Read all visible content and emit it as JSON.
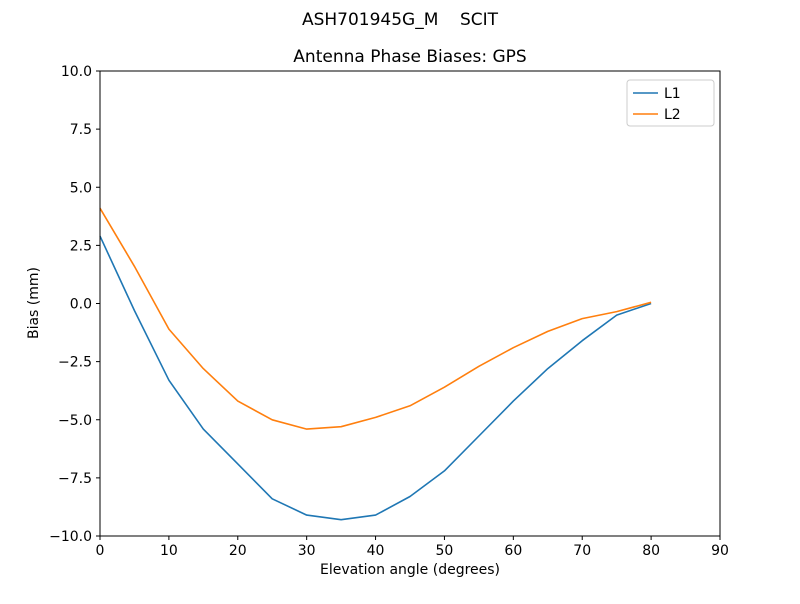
{
  "figure": {
    "suptitle": "ASH701945G_M    SCIT"
  },
  "chart_data": {
    "type": "line",
    "title": "Antenna Phase Biases: GPS",
    "xlabel": "Elevation angle (degrees)",
    "ylabel": "Bias (mm)",
    "xlim": [
      0,
      90
    ],
    "ylim": [
      -10,
      10
    ],
    "grid": false,
    "legend_position": "upper right",
    "xticks": [
      0,
      10,
      20,
      30,
      40,
      50,
      60,
      70,
      80,
      90
    ],
    "xtick_labels": [
      "0",
      "10",
      "20",
      "30",
      "40",
      "50",
      "60",
      "70",
      "80",
      "90"
    ],
    "yticks": [
      -10,
      -7.5,
      -5,
      -2.5,
      0,
      2.5,
      5,
      7.5,
      10
    ],
    "ytick_labels": [
      "−10.0",
      "−7.5",
      "−5.0",
      "−2.5",
      "0.0",
      "2.5",
      "5.0",
      "7.5",
      "10.0"
    ],
    "x": [
      0,
      5,
      10,
      15,
      20,
      25,
      30,
      35,
      40,
      45,
      50,
      55,
      60,
      65,
      70,
      75,
      80
    ],
    "series": [
      {
        "name": "L1",
        "color": "#1f77b4",
        "values": [
          2.9,
          -0.3,
          -3.3,
          -5.4,
          -6.9,
          -8.4,
          -9.1,
          -9.3,
          -9.1,
          -8.3,
          -7.2,
          -5.7,
          -4.2,
          -2.8,
          -1.6,
          -0.5,
          0.0
        ]
      },
      {
        "name": "L2",
        "color": "#ff7f0e",
        "values": [
          4.1,
          1.6,
          -1.1,
          -2.8,
          -4.2,
          -5.0,
          -5.4,
          -5.3,
          -4.9,
          -4.4,
          -3.6,
          -2.7,
          -1.9,
          -1.2,
          -0.65,
          -0.35,
          0.05
        ]
      }
    ]
  }
}
